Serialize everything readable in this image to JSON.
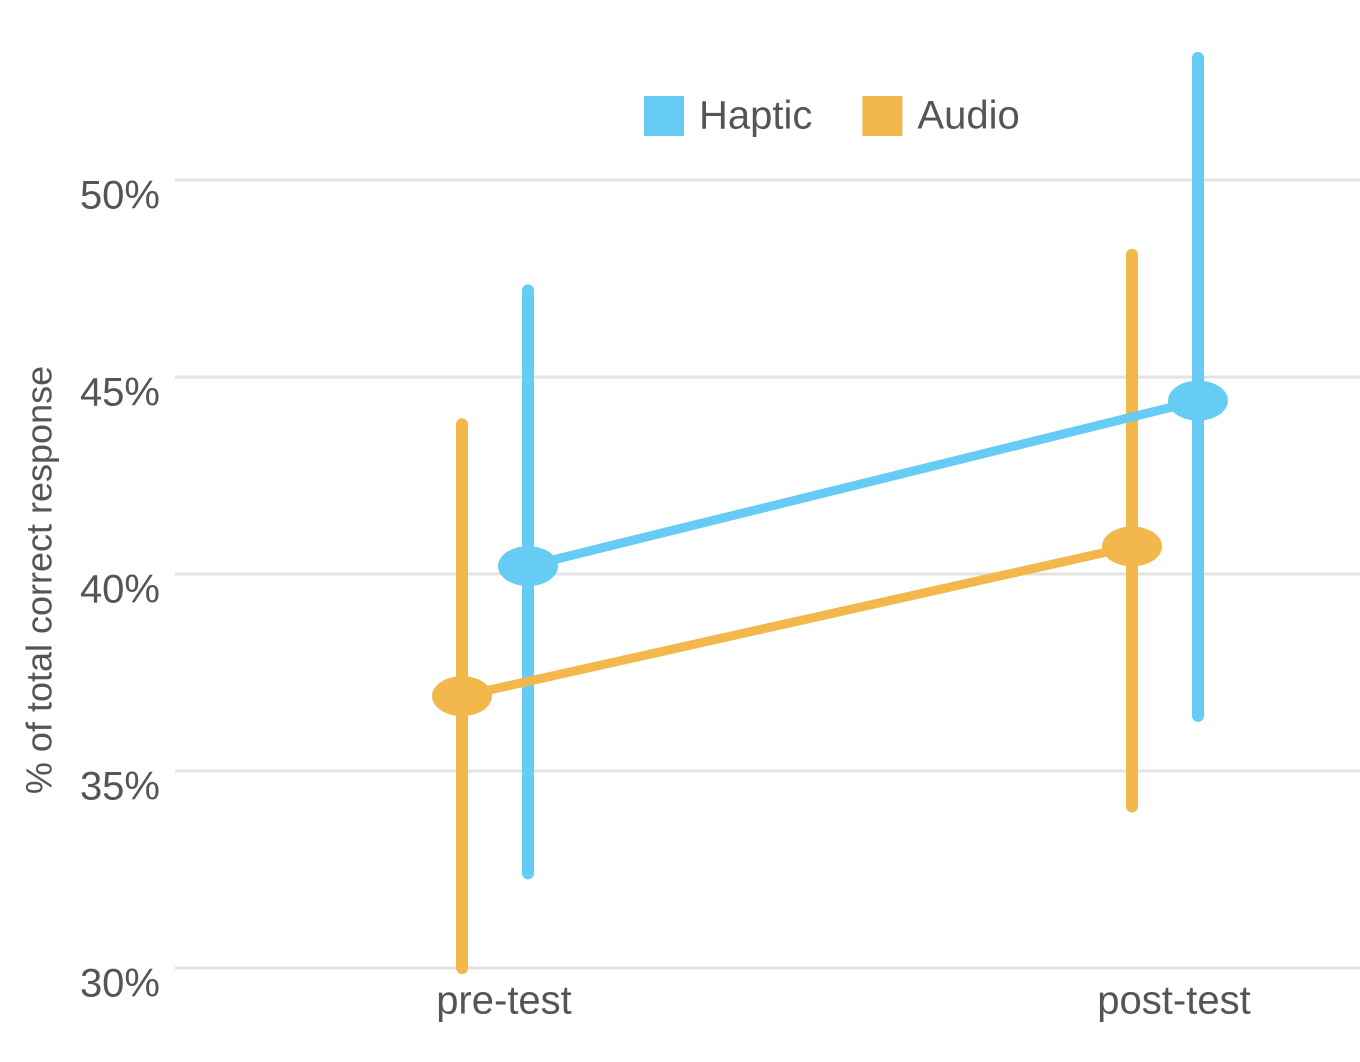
{
  "chart_data": {
    "type": "line",
    "y_label": "% of total correct response",
    "categories": [
      "pre-test",
      "post-test"
    ],
    "series": [
      {
        "name": "Haptic",
        "color": "#66ccf5",
        "values": [
          40.2,
          44.4
        ],
        "lower": [
          32.4,
          36.4
        ],
        "upper": [
          47.2,
          53.1
        ]
      },
      {
        "name": "Audio",
        "color": "#f2b84b",
        "values": [
          36.9,
          40.7
        ],
        "lower": [
          30,
          34.1
        ],
        "upper": [
          43.8,
          48.1
        ]
      }
    ],
    "ylim": [
      30,
      54
    ],
    "yticks": [
      {
        "value": 30,
        "label": "30%"
      },
      {
        "value": 35,
        "label": "35%"
      },
      {
        "value": 40,
        "label": "40%"
      },
      {
        "value": 45,
        "label": "45%"
      },
      {
        "value": 50,
        "label": "50%"
      }
    ],
    "grid": true,
    "legend": "top"
  }
}
